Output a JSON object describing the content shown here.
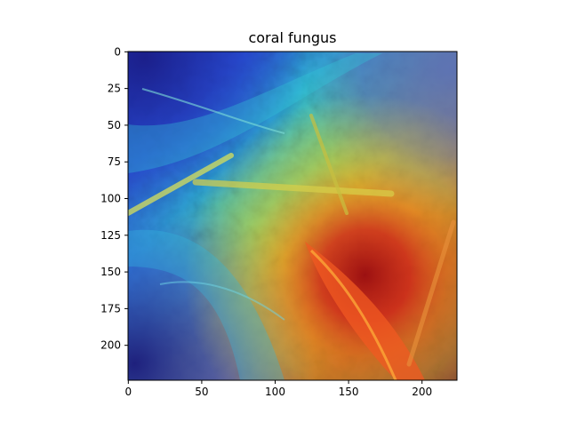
{
  "figure": {
    "title": "coral fungus",
    "x_ticks": [
      "0",
      "50",
      "100",
      "150",
      "200"
    ],
    "y_ticks": [
      "0",
      "25",
      "50",
      "75",
      "100",
      "125",
      "150",
      "175",
      "200"
    ],
    "image": {
      "description_icon": "heatmap-overlay-photo"
    }
  }
}
